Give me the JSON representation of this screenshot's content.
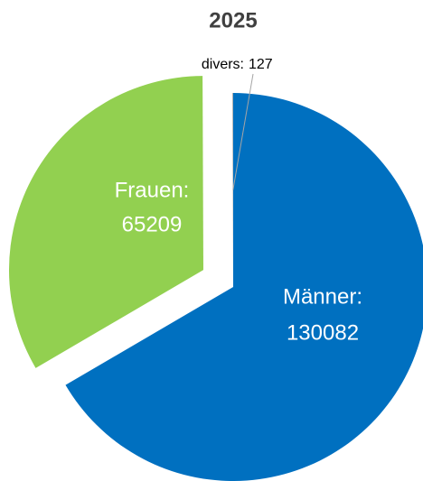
{
  "chart_data": {
    "type": "pie",
    "title": "2025",
    "categories": [
      "Männer:",
      "Frauen:",
      "divers:"
    ],
    "values": [
      130082,
      65209,
      127
    ],
    "colors": [
      "#0070c0",
      "#92d050",
      "#a5a5a5"
    ]
  }
}
